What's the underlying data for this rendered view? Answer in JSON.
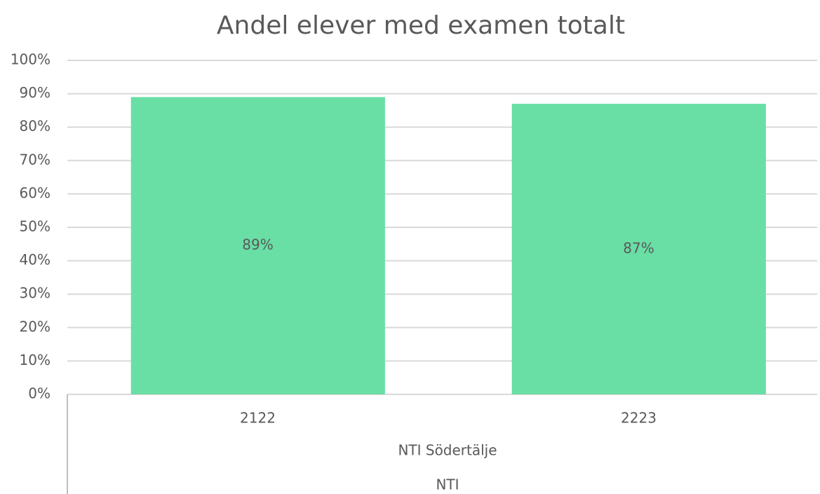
{
  "chart_data": {
    "type": "bar",
    "title": "Andel elever med examen totalt",
    "categories": [
      "2122",
      "2223"
    ],
    "category_groups": [
      "NTI Södertälje",
      "NTI"
    ],
    "values": [
      89,
      87
    ],
    "value_labels": [
      "89%",
      "87%"
    ],
    "color": "#69dea5",
    "ylim": [
      0,
      100
    ],
    "yticks": [
      {
        "value": 0,
        "label": "0%"
      },
      {
        "value": 10,
        "label": "10%"
      },
      {
        "value": 20,
        "label": "20%"
      },
      {
        "value": 30,
        "label": "30%"
      },
      {
        "value": 40,
        "label": "40%"
      },
      {
        "value": 50,
        "label": "50%"
      },
      {
        "value": 60,
        "label": "60%"
      },
      {
        "value": 70,
        "label": "70%"
      },
      {
        "value": 80,
        "label": "80%"
      },
      {
        "value": 90,
        "label": "90%"
      },
      {
        "value": 100,
        "label": "100%"
      }
    ],
    "grid": true
  }
}
